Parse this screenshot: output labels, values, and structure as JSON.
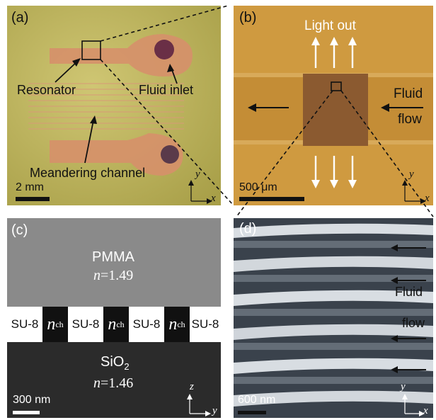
{
  "panel_a": {
    "label": "(a)",
    "resonator": "Resonator",
    "fluid_inlet": "Fluid inlet",
    "meandering": "Meandering channel",
    "scale": "2 mm",
    "axis_y": "y",
    "axis_x": "x"
  },
  "panel_b": {
    "label": "(b)",
    "light_out": "Light out",
    "fluid": "Fluid",
    "flow": "flow",
    "scale": "500 μm",
    "axis_y": "y",
    "axis_x": "x"
  },
  "panel_c": {
    "label": "(c)",
    "top_material": "PMMA",
    "top_n": "n",
    "top_index": "=1.49",
    "bottom_material": "SiO",
    "bottom_sub": "2",
    "bottom_n": "n",
    "bottom_index": "=1.46",
    "su8": "SU-8",
    "nch_n": "n",
    "nch_sub": "ch",
    "scale": "300 nm",
    "axis_z": "z",
    "axis_y": "y"
  },
  "panel_d": {
    "label": "(d)",
    "fluid": "Fluid",
    "flow": "flow",
    "scale": "600 nm",
    "axis_y": "y",
    "axis_x": "x"
  }
}
